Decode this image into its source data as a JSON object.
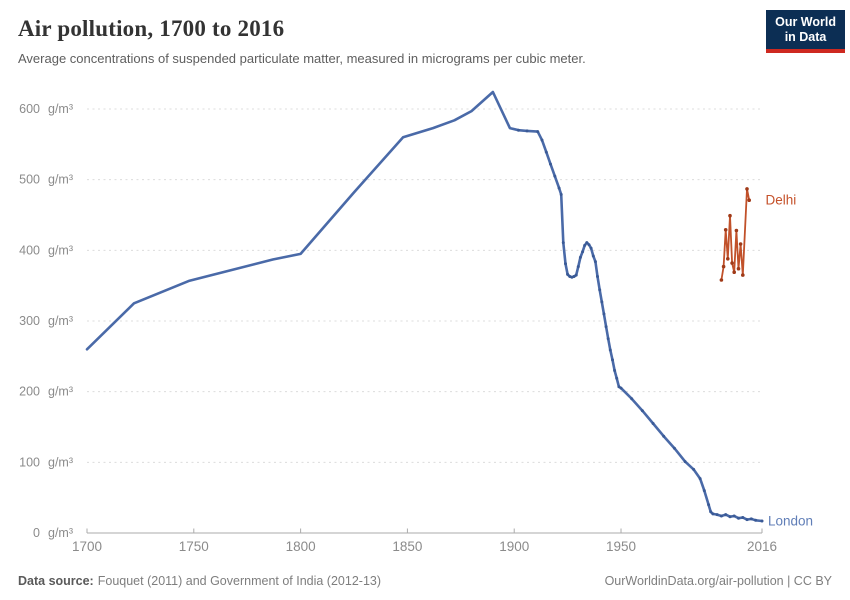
{
  "chart_data": {
    "type": "line",
    "title": "Air pollution, 1700 to 2016",
    "subtitle": "Average concentrations of suspended particulate matter, measured in micrograms per cubic meter.",
    "unit": "g/m³",
    "xlim": [
      1700,
      2016
    ],
    "ylim": [
      0,
      600
    ],
    "x_ticks": [
      1700,
      1750,
      1800,
      1850,
      1900,
      1950,
      2016
    ],
    "y_ticks": [
      0,
      100,
      200,
      300,
      400,
      500,
      600
    ],
    "grid": "dashed-horizontal",
    "legend_position": "end-of-line-labels",
    "colors": {
      "grid": "#dcdcdc",
      "axis": "#ababab",
      "tick_text": "#8b8b8b"
    },
    "series": [
      {
        "name": "London",
        "color": "#4a6aa8",
        "label_color": "#607eb7",
        "marker_color": "#3a5a96",
        "line_width": 2.6,
        "marker_radius": 1.5,
        "markers_from_year": 1900,
        "points": [
          [
            1700,
            260
          ],
          [
            1722,
            325
          ],
          [
            1748,
            357
          ],
          [
            1765,
            370
          ],
          [
            1787,
            387
          ],
          [
            1800,
            395
          ],
          [
            1825,
            482
          ],
          [
            1848,
            560
          ],
          [
            1862,
            573
          ],
          [
            1872,
            584
          ],
          [
            1880,
            597
          ],
          [
            1890,
            624
          ],
          [
            1898,
            573
          ],
          [
            1902,
            570
          ],
          [
            1906,
            569
          ],
          [
            1911,
            568
          ],
          [
            1913,
            556
          ],
          [
            1915,
            539
          ],
          [
            1917,
            522
          ],
          [
            1919,
            505
          ],
          [
            1921,
            488
          ],
          [
            1922,
            479
          ],
          [
            1923,
            411
          ],
          [
            1924,
            381
          ],
          [
            1925,
            366
          ],
          [
            1926,
            363
          ],
          [
            1927,
            362
          ],
          [
            1928,
            363
          ],
          [
            1929,
            365
          ],
          [
            1930,
            377
          ],
          [
            1931,
            390
          ],
          [
            1932,
            398
          ],
          [
            1933,
            407
          ],
          [
            1934,
            411
          ],
          [
            1935,
            408
          ],
          [
            1936,
            403
          ],
          [
            1937,
            392
          ],
          [
            1938,
            384
          ],
          [
            1939,
            363
          ],
          [
            1940,
            344
          ],
          [
            1941,
            327
          ],
          [
            1942,
            310
          ],
          [
            1943,
            292
          ],
          [
            1944,
            275
          ],
          [
            1945,
            259
          ],
          [
            1946,
            245
          ],
          [
            1947,
            230
          ],
          [
            1948,
            219
          ],
          [
            1949,
            207
          ],
          [
            1950,
            205
          ],
          [
            1955,
            190
          ],
          [
            1960,
            173
          ],
          [
            1965,
            155
          ],
          [
            1970,
            137
          ],
          [
            1975,
            120
          ],
          [
            1980,
            101
          ],
          [
            1984,
            90
          ],
          [
            1987,
            77
          ],
          [
            1989,
            60
          ],
          [
            1991,
            40
          ],
          [
            1992,
            30
          ],
          [
            1993,
            27
          ],
          [
            1995,
            26
          ],
          [
            1997,
            24
          ],
          [
            1999,
            26
          ],
          [
            2001,
            23
          ],
          [
            2003,
            24
          ],
          [
            2005,
            21
          ],
          [
            2007,
            22
          ],
          [
            2009,
            19
          ],
          [
            2011,
            20
          ],
          [
            2013,
            18
          ],
          [
            2016,
            17
          ]
        ]
      },
      {
        "name": "Delhi",
        "color": "#c1512a",
        "label_color": "#c5522b",
        "marker_color": "#a03a18",
        "line_width": 1.8,
        "marker_radius": 1.8,
        "markers_from_year": 0,
        "points": [
          [
            1997,
            358
          ],
          [
            1998,
            377
          ],
          [
            1999,
            429
          ],
          [
            2000,
            388
          ],
          [
            2001,
            449
          ],
          [
            2002,
            382
          ],
          [
            2003,
            369
          ],
          [
            2004,
            428
          ],
          [
            2005,
            374
          ],
          [
            2006,
            409
          ],
          [
            2007,
            365
          ],
          [
            2009,
            487
          ],
          [
            2010,
            471
          ]
        ]
      }
    ]
  },
  "footer": {
    "source_label": "Data source:",
    "source_text": "Fouquet (2011) and Government of India (2012-13)",
    "credit": "OurWorldinData.org/air-pollution | CC BY"
  },
  "logo": {
    "line1": "Our World",
    "line2": "in Data"
  }
}
